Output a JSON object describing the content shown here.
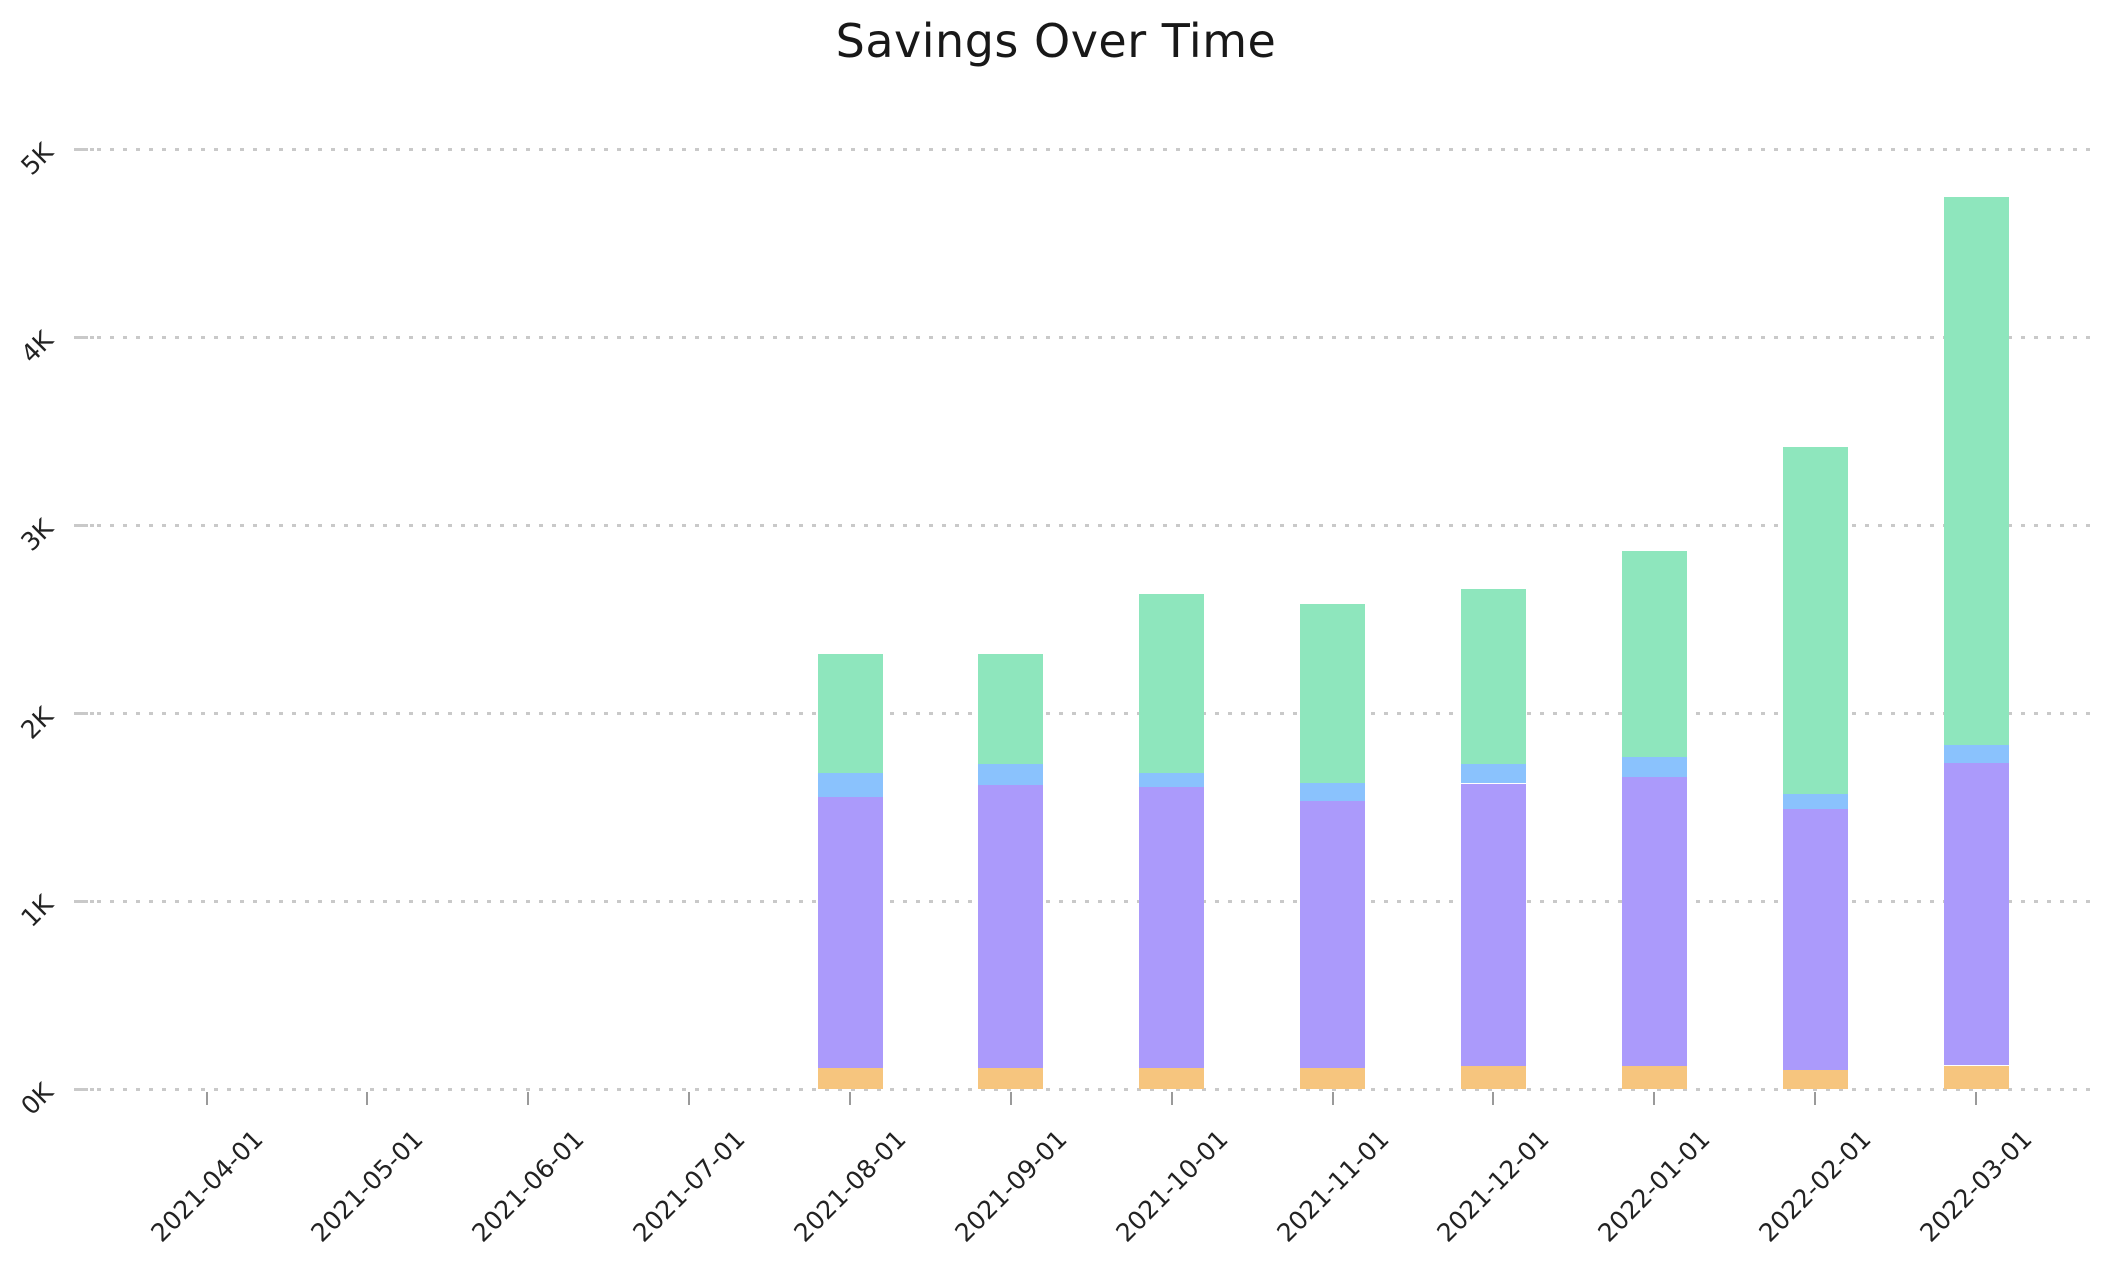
{
  "chart_data": {
    "type": "bar",
    "stacked": true,
    "title": "Savings Over Time",
    "x_type": "date",
    "categories": [
      "2021-04-01",
      "2021-05-01",
      "2021-06-01",
      "2021-07-01",
      "2021-08-01",
      "2021-09-01",
      "2021-10-01",
      "2021-11-01",
      "2021-12-01",
      "2022-01-01",
      "2022-02-01",
      "2022-03-01"
    ],
    "series": [
      {
        "name": "orange",
        "color": "#F6C57E",
        "values": [
          0,
          0,
          0,
          0,
          110,
          110,
          110,
          110,
          120,
          120,
          100,
          125
        ]
      },
      {
        "name": "purple",
        "color": "#AB9AFB",
        "values": [
          0,
          0,
          0,
          0,
          1445,
          1505,
          1495,
          1420,
          1505,
          1540,
          1390,
          1610
        ]
      },
      {
        "name": "blue",
        "color": "#8AC2FD",
        "values": [
          0,
          0,
          0,
          0,
          125,
          115,
          75,
          100,
          105,
          105,
          80,
          95
        ]
      },
      {
        "name": "green",
        "color": "#8EE6BD",
        "values": [
          0,
          0,
          0,
          0,
          635,
          585,
          955,
          950,
          930,
          1095,
          1845,
          2915
        ]
      }
    ],
    "totals": [
      0,
      0,
      0,
      0,
      2315,
      2315,
      2635,
      2580,
      2660,
      2860,
      3415,
      4745
    ],
    "y_ticks": [
      "0K",
      "1K",
      "2K",
      "3K",
      "4K",
      "5K"
    ],
    "y_tick_values": [
      0,
      1000,
      2000,
      3000,
      4000,
      5000
    ],
    "ylim": [
      0,
      5200
    ],
    "grid": "horizontal-dotted",
    "legend": "none"
  }
}
